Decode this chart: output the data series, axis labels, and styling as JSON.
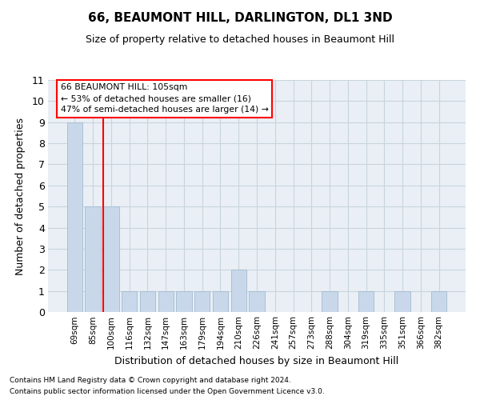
{
  "title": "66, BEAUMONT HILL, DARLINGTON, DL1 3ND",
  "subtitle": "Size of property relative to detached houses in Beaumont Hill",
  "xlabel": "Distribution of detached houses by size in Beaumont Hill",
  "ylabel": "Number of detached properties",
  "categories": [
    "69sqm",
    "85sqm",
    "100sqm",
    "116sqm",
    "132sqm",
    "147sqm",
    "163sqm",
    "179sqm",
    "194sqm",
    "210sqm",
    "226sqm",
    "241sqm",
    "257sqm",
    "273sqm",
    "288sqm",
    "304sqm",
    "319sqm",
    "335sqm",
    "351sqm",
    "366sqm",
    "382sqm"
  ],
  "values": [
    9,
    5,
    5,
    1,
    1,
    1,
    1,
    1,
    1,
    2,
    1,
    0,
    0,
    0,
    1,
    0,
    1,
    0,
    1,
    0,
    1
  ],
  "bar_color": "#c8d8ea",
  "bar_edge_color": "#a8bfd4",
  "bar_linewidth": 0.7,
  "ylim": [
    0,
    11
  ],
  "yticks": [
    0,
    1,
    2,
    3,
    4,
    5,
    6,
    7,
    8,
    9,
    10,
    11
  ],
  "annotation_line1": "66 BEAUMONT HILL: 105sqm",
  "annotation_line2": "← 53% of detached houses are smaller (16)",
  "annotation_line3": "47% of semi-detached houses are larger (14) →",
  "footer_line1": "Contains HM Land Registry data © Crown copyright and database right 2024.",
  "footer_line2": "Contains public sector information licensed under the Open Government Licence v3.0.",
  "grid_color": "#c8d4de",
  "bg_color": "#eaeff5",
  "red_line_x": 2.5,
  "fig_width": 6.0,
  "fig_height": 5.0,
  "dpi": 100
}
